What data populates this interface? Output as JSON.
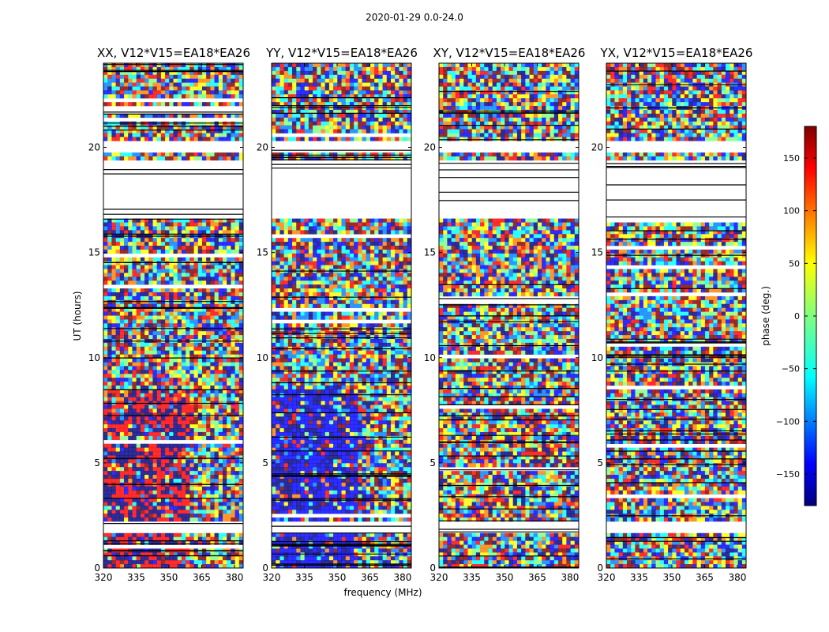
{
  "figure": {
    "suptitle": "2020-01-29 0.0-24.0",
    "xlabel": "frequency (MHz)",
    "ylabel": "UT (hours)",
    "colorbar_label": "phase (deg.)"
  },
  "colors": {
    "colormap": [
      "#00007f",
      "#0000ff",
      "#0080ff",
      "#00ffff",
      "#80ff80",
      "#ffff00",
      "#ff8000",
      "#ff0000",
      "#7f0000"
    ]
  },
  "chart_data": {
    "type": "heatmap",
    "title": "2020-01-29 0.0-24.0",
    "xlabel": "frequency (MHz)",
    "ylabel": "UT (hours)",
    "xlim": [
      320,
      384
    ],
    "ylim": [
      0,
      24
    ],
    "x_ticks": [
      320,
      335,
      350,
      365,
      380
    ],
    "y_ticks": [
      0,
      5,
      10,
      15,
      20
    ],
    "color_scale": {
      "label": "phase (deg.)",
      "range": [
        -180,
        180
      ],
      "ticks": [
        -150,
        -100,
        -50,
        0,
        50,
        100,
        150
      ]
    },
    "panels": [
      {
        "title": "XX, V12*V15=EA18*EA26"
      },
      {
        "title": "YY, V12*V15=EA18*EA26"
      },
      {
        "title": "XY, V12*V15=EA18*EA26"
      },
      {
        "title": "YX, V12*V15=EA18*EA26"
      }
    ],
    "data_gaps_hours": [
      [
        1.6,
        2.3
      ],
      [
        16.6,
        19.3
      ],
      [
        19.8,
        20.3
      ]
    ]
  }
}
